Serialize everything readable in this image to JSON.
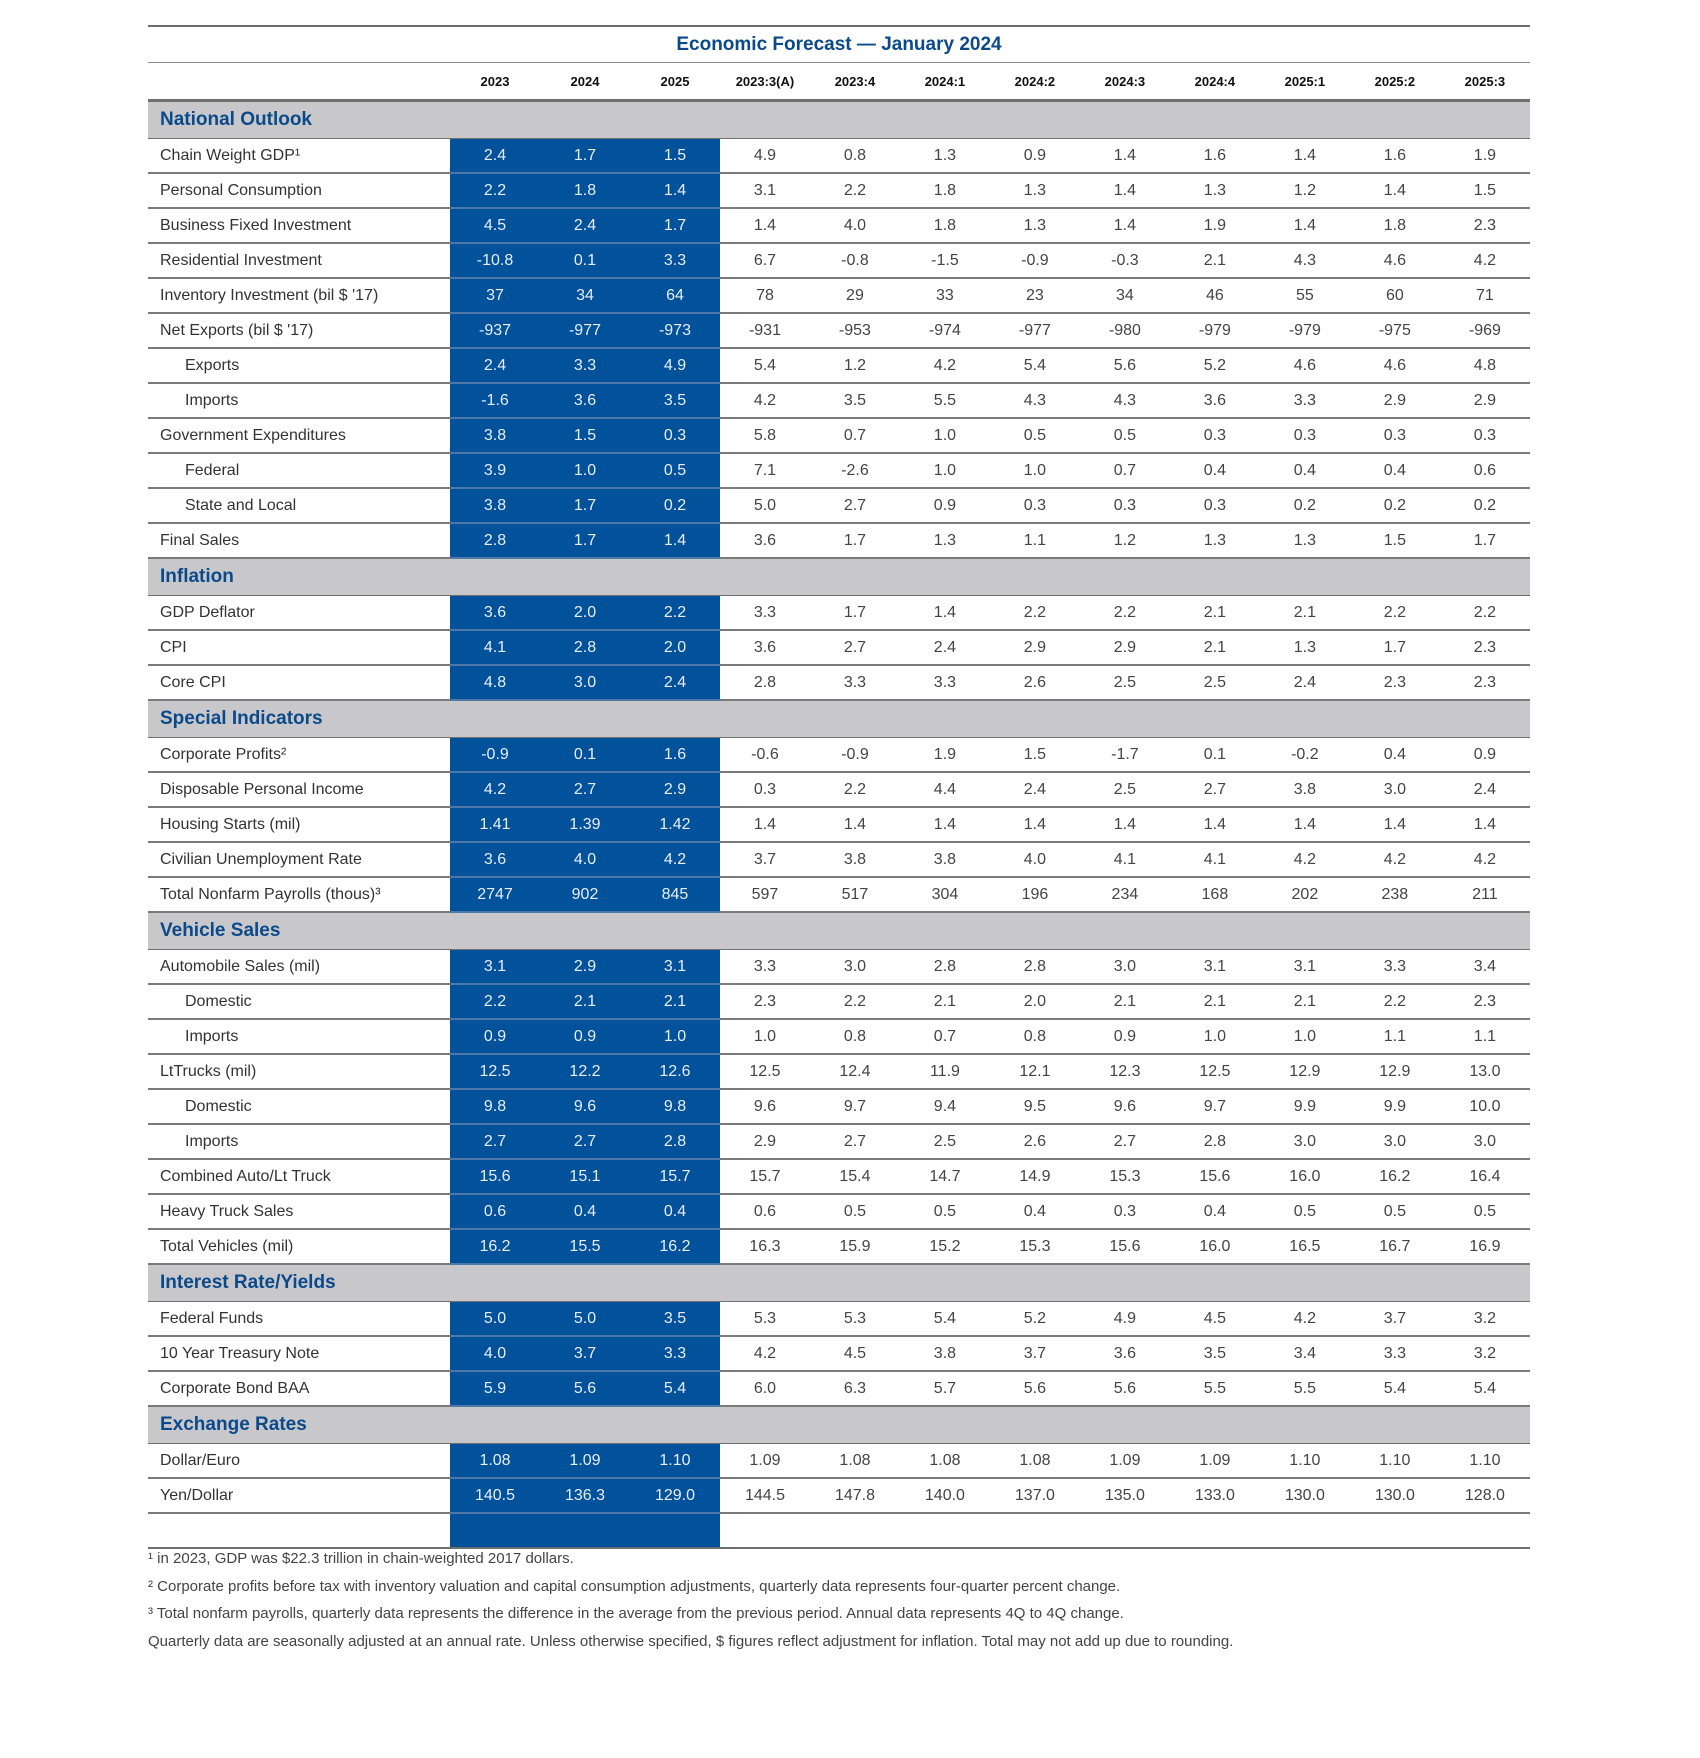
{
  "title": "Economic Forecast — January 2024",
  "columns": [
    "2023",
    "2024",
    "2025",
    "2023:3(A)",
    "2023:4",
    "2024:1",
    "2024:2",
    "2024:3",
    "2024:4",
    "2025:1",
    "2025:2",
    "2025:3"
  ],
  "annual_fill_color": "#02519b",
  "section_fill_color": "#c8c8cb",
  "sections": [
    {
      "name": "National Outlook",
      "rows": [
        {
          "label": "Chain Weight GDP¹",
          "indent": false,
          "values": [
            "2.4",
            "1.7",
            "1.5",
            "4.9",
            "0.8",
            "1.3",
            "0.9",
            "1.4",
            "1.6",
            "1.4",
            "1.6",
            "1.9"
          ]
        },
        {
          "label": "Personal Consumption",
          "indent": false,
          "values": [
            "2.2",
            "1.8",
            "1.4",
            "3.1",
            "2.2",
            "1.8",
            "1.3",
            "1.4",
            "1.3",
            "1.2",
            "1.4",
            "1.5"
          ]
        },
        {
          "label": "Business Fixed Investment",
          "indent": false,
          "values": [
            "4.5",
            "2.4",
            "1.7",
            "1.4",
            "4.0",
            "1.8",
            "1.3",
            "1.4",
            "1.9",
            "1.4",
            "1.8",
            "2.3"
          ]
        },
        {
          "label": "Residential Investment",
          "indent": false,
          "values": [
            "-10.8",
            "0.1",
            "3.3",
            "6.7",
            "-0.8",
            "-1.5",
            "-0.9",
            "-0.3",
            "2.1",
            "4.3",
            "4.6",
            "4.2"
          ]
        },
        {
          "label": "Inventory Investment (bil $ '17)",
          "indent": false,
          "values": [
            "37",
            "34",
            "64",
            "78",
            "29",
            "33",
            "23",
            "34",
            "46",
            "55",
            "60",
            "71"
          ]
        },
        {
          "label": "Net Exports (bil $ '17)",
          "indent": false,
          "values": [
            "-937",
            "-977",
            "-973",
            "-931",
            "-953",
            "-974",
            "-977",
            "-980",
            "-979",
            "-979",
            "-975",
            "-969"
          ]
        },
        {
          "label": "Exports",
          "indent": true,
          "values": [
            "2.4",
            "3.3",
            "4.9",
            "5.4",
            "1.2",
            "4.2",
            "5.4",
            "5.6",
            "5.2",
            "4.6",
            "4.6",
            "4.8"
          ]
        },
        {
          "label": "Imports",
          "indent": true,
          "values": [
            "-1.6",
            "3.6",
            "3.5",
            "4.2",
            "3.5",
            "5.5",
            "4.3",
            "4.3",
            "3.6",
            "3.3",
            "2.9",
            "2.9"
          ]
        },
        {
          "label": "Government Expenditures",
          "indent": false,
          "values": [
            "3.8",
            "1.5",
            "0.3",
            "5.8",
            "0.7",
            "1.0",
            "0.5",
            "0.5",
            "0.3",
            "0.3",
            "0.3",
            "0.3"
          ]
        },
        {
          "label": "Federal",
          "indent": true,
          "values": [
            "3.9",
            "1.0",
            "0.5",
            "7.1",
            "-2.6",
            "1.0",
            "1.0",
            "0.7",
            "0.4",
            "0.4",
            "0.4",
            "0.6"
          ]
        },
        {
          "label": "State and Local",
          "indent": true,
          "values": [
            "3.8",
            "1.7",
            "0.2",
            "5.0",
            "2.7",
            "0.9",
            "0.3",
            "0.3",
            "0.3",
            "0.2",
            "0.2",
            "0.2"
          ]
        },
        {
          "label": "Final Sales",
          "indent": false,
          "values": [
            "2.8",
            "1.7",
            "1.4",
            "3.6",
            "1.7",
            "1.3",
            "1.1",
            "1.2",
            "1.3",
            "1.3",
            "1.5",
            "1.7"
          ]
        }
      ]
    },
    {
      "name": "Inflation",
      "rows": [
        {
          "label": "GDP Deflator",
          "indent": false,
          "values": [
            "3.6",
            "2.0",
            "2.2",
            "3.3",
            "1.7",
            "1.4",
            "2.2",
            "2.2",
            "2.1",
            "2.1",
            "2.2",
            "2.2"
          ]
        },
        {
          "label": "CPI",
          "indent": false,
          "values": [
            "4.1",
            "2.8",
            "2.0",
            "3.6",
            "2.7",
            "2.4",
            "2.9",
            "2.9",
            "2.1",
            "1.3",
            "1.7",
            "2.3"
          ]
        },
        {
          "label": "Core CPI",
          "indent": false,
          "values": [
            "4.8",
            "3.0",
            "2.4",
            "2.8",
            "3.3",
            "3.3",
            "2.6",
            "2.5",
            "2.5",
            "2.4",
            "2.3",
            "2.3"
          ]
        }
      ]
    },
    {
      "name": "Special Indicators",
      "rows": [
        {
          "label": "Corporate Profits²",
          "indent": false,
          "values": [
            "-0.9",
            "0.1",
            "1.6",
            "-0.6",
            "-0.9",
            "1.9",
            "1.5",
            "-1.7",
            "0.1",
            "-0.2",
            "0.4",
            "0.9"
          ]
        },
        {
          "label": "Disposable Personal Income",
          "indent": false,
          "values": [
            "4.2",
            "2.7",
            "2.9",
            "0.3",
            "2.2",
            "4.4",
            "2.4",
            "2.5",
            "2.7",
            "3.8",
            "3.0",
            "2.4"
          ]
        },
        {
          "label": "Housing Starts (mil)",
          "indent": false,
          "values": [
            "1.41",
            "1.39",
            "1.42",
            "1.4",
            "1.4",
            "1.4",
            "1.4",
            "1.4",
            "1.4",
            "1.4",
            "1.4",
            "1.4"
          ]
        },
        {
          "label": "Civilian Unemployment Rate",
          "indent": false,
          "values": [
            "3.6",
            "4.0",
            "4.2",
            "3.7",
            "3.8",
            "3.8",
            "4.0",
            "4.1",
            "4.1",
            "4.2",
            "4.2",
            "4.2"
          ]
        },
        {
          "label": "Total Nonfarm Payrolls (thous)³",
          "indent": false,
          "values": [
            "2747",
            "902",
            "845",
            "597",
            "517",
            "304",
            "196",
            "234",
            "168",
            "202",
            "238",
            "211"
          ]
        }
      ]
    },
    {
      "name": "Vehicle Sales",
      "rows": [
        {
          "label": "Automobile Sales (mil)",
          "indent": false,
          "values": [
            "3.1",
            "2.9",
            "3.1",
            "3.3",
            "3.0",
            "2.8",
            "2.8",
            "3.0",
            "3.1",
            "3.1",
            "3.3",
            "3.4"
          ]
        },
        {
          "label": "Domestic",
          "indent": true,
          "values": [
            "2.2",
            "2.1",
            "2.1",
            "2.3",
            "2.2",
            "2.1",
            "2.0",
            "2.1",
            "2.1",
            "2.1",
            "2.2",
            "2.3"
          ]
        },
        {
          "label": "Imports",
          "indent": true,
          "values": [
            "0.9",
            "0.9",
            "1.0",
            "1.0",
            "0.8",
            "0.7",
            "0.8",
            "0.9",
            "1.0",
            "1.0",
            "1.1",
            "1.1"
          ]
        },
        {
          "label": "LtTrucks (mil)",
          "indent": false,
          "values": [
            "12.5",
            "12.2",
            "12.6",
            "12.5",
            "12.4",
            "11.9",
            "12.1",
            "12.3",
            "12.5",
            "12.9",
            "12.9",
            "13.0"
          ]
        },
        {
          "label": "Domestic",
          "indent": true,
          "values": [
            "9.8",
            "9.6",
            "9.8",
            "9.6",
            "9.7",
            "9.4",
            "9.5",
            "9.6",
            "9.7",
            "9.9",
            "9.9",
            "10.0"
          ]
        },
        {
          "label": "Imports",
          "indent": true,
          "values": [
            "2.7",
            "2.7",
            "2.8",
            "2.9",
            "2.7",
            "2.5",
            "2.6",
            "2.7",
            "2.8",
            "3.0",
            "3.0",
            "3.0"
          ]
        },
        {
          "label": "Combined Auto/Lt Truck",
          "indent": false,
          "values": [
            "15.6",
            "15.1",
            "15.7",
            "15.7",
            "15.4",
            "14.7",
            "14.9",
            "15.3",
            "15.6",
            "16.0",
            "16.2",
            "16.4"
          ]
        },
        {
          "label": "Heavy Truck Sales",
          "indent": false,
          "values": [
            "0.6",
            "0.4",
            "0.4",
            "0.6",
            "0.5",
            "0.5",
            "0.4",
            "0.3",
            "0.4",
            "0.5",
            "0.5",
            "0.5"
          ]
        },
        {
          "label": "Total Vehicles (mil)",
          "indent": false,
          "values": [
            "16.2",
            "15.5",
            "16.2",
            "16.3",
            "15.9",
            "15.2",
            "15.3",
            "15.6",
            "16.0",
            "16.5",
            "16.7",
            "16.9"
          ]
        }
      ]
    },
    {
      "name": "Interest Rate/Yields",
      "rows": [
        {
          "label": "Federal Funds",
          "indent": false,
          "values": [
            "5.0",
            "5.0",
            "3.5",
            "5.3",
            "5.3",
            "5.4",
            "5.2",
            "4.9",
            "4.5",
            "4.2",
            "3.7",
            "3.2"
          ]
        },
        {
          "label": "10 Year Treasury Note",
          "indent": false,
          "values": [
            "4.0",
            "3.7",
            "3.3",
            "4.2",
            "4.5",
            "3.8",
            "3.7",
            "3.6",
            "3.5",
            "3.4",
            "3.3",
            "3.2"
          ]
        },
        {
          "label": "Corporate Bond BAA",
          "indent": false,
          "values": [
            "5.9",
            "5.6",
            "5.4",
            "6.0",
            "6.3",
            "5.7",
            "5.6",
            "5.6",
            "5.5",
            "5.5",
            "5.4",
            "5.4"
          ]
        }
      ]
    },
    {
      "name": "Exchange Rates",
      "rows": [
        {
          "label": "Dollar/Euro",
          "indent": false,
          "values": [
            "1.08",
            "1.09",
            "1.10",
            "1.09",
            "1.08",
            "1.08",
            "1.08",
            "1.09",
            "1.09",
            "1.10",
            "1.10",
            "1.10"
          ]
        },
        {
          "label": "Yen/Dollar",
          "indent": false,
          "values": [
            "140.5",
            "136.3",
            "129.0",
            "144.5",
            "147.8",
            "140.0",
            "137.0",
            "135.0",
            "133.0",
            "130.0",
            "130.0",
            "128.0"
          ]
        }
      ]
    }
  ],
  "footnotes": [
    "¹ in 2023, GDP was $22.3 trillion in chain-weighted 2017 dollars.",
    "² Corporate profits before tax with inventory valuation and capital consumption adjustments, quarterly data represents four-quarter percent change.",
    "³ Total nonfarm payrolls, quarterly data represents the difference in the average from the previous period. Annual data represents 4Q to 4Q change.",
    "Quarterly data are seasonally adjusted at an annual rate. Unless otherwise specified, $ figures reflect adjustment for inflation. Total may not add up due to rounding."
  ]
}
